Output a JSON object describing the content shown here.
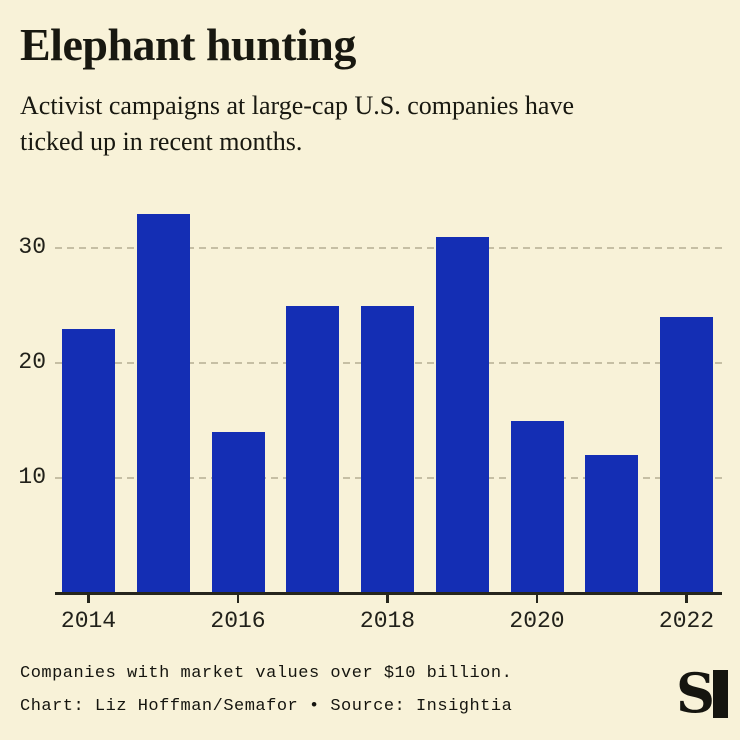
{
  "header": {
    "title": "Elephant hunting",
    "subtitle_line1": "Activist campaigns at large-cap U.S. companies have",
    "subtitle_line2": "ticked up in recent months."
  },
  "chart_data": {
    "type": "bar",
    "title": "Elephant hunting",
    "subtitle": "Activist campaigns at large-cap U.S. companies have ticked up in recent months.",
    "categories": [
      2014,
      2015,
      2016,
      2017,
      2018,
      2019,
      2020,
      2021,
      2022
    ],
    "values": [
      23,
      33,
      14,
      25,
      25,
      31,
      15,
      12,
      24
    ],
    "xlabel": "",
    "ylabel": "",
    "ylim": [
      0,
      34
    ],
    "yticks": [
      10,
      20,
      30
    ],
    "xtick_labels": [
      "2014",
      "2016",
      "2018",
      "2020",
      "2022"
    ],
    "grid": "horizontal-dashed",
    "legend": "none",
    "bar_color": "#142eb4",
    "background_color": "#f8f2d8",
    "axis_color": "#26261d"
  },
  "footer": {
    "note": "Companies with market values over $10 billion.",
    "credit": "Chart: Liz Hoffman/Semafor • Source: Insightia",
    "logo_glyph": "S"
  }
}
